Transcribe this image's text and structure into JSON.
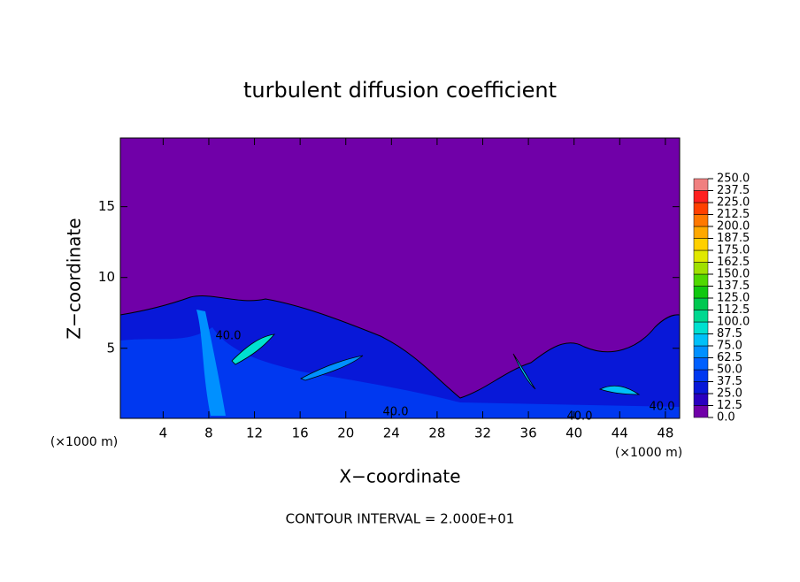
{
  "chart_data": {
    "type": "contour",
    "title": "turbulent diffusion coefficient",
    "x_label": "X−coordinate",
    "y_label": "Z−coordinate",
    "x_unit_left": "(×1000 m)",
    "x_unit_right": "(×1000 m)",
    "footer": "CONTOUR INTERVAL = 2.000E+01",
    "xlim": [
      0.25,
      49.25
    ],
    "ylim": [
      0.05,
      19.85
    ],
    "xticks": [
      4,
      8,
      12,
      16,
      20,
      24,
      28,
      32,
      36,
      40,
      44,
      48
    ],
    "yticks": [
      5,
      10,
      15
    ],
    "contour_labels": [
      "40.0",
      "40.0",
      "40.0",
      "40.0"
    ],
    "colorbar": {
      "levels": [
        {
          "value": 0,
          "label": "0.0"
        },
        {
          "value": 12.5,
          "label": "12.5"
        },
        {
          "value": 25,
          "label": "25.0"
        },
        {
          "value": 37.5,
          "label": "37.5"
        },
        {
          "value": 50,
          "label": "50.0"
        },
        {
          "value": 62.5,
          "label": "62.5"
        },
        {
          "value": 75,
          "label": "75.0"
        },
        {
          "value": 87.5,
          "label": "87.5"
        },
        {
          "value": 100,
          "label": "100.0"
        },
        {
          "value": 112.5,
          "label": "112.5"
        },
        {
          "value": 125,
          "label": "125.0"
        },
        {
          "value": 137.5,
          "label": "137.5"
        },
        {
          "value": 150,
          "label": "150.0"
        },
        {
          "value": 162.5,
          "label": "162.5"
        },
        {
          "value": 175,
          "label": "175.0"
        },
        {
          "value": 187.5,
          "label": "187.5"
        },
        {
          "value": 200,
          "label": "200.0"
        },
        {
          "value": 212.5,
          "label": "212.5"
        },
        {
          "value": 225,
          "label": "225.0"
        },
        {
          "value": 237.5,
          "label": "237.5"
        },
        {
          "value": 250,
          "label": "250.0"
        }
      ],
      "colors": [
        "#7000a8",
        "#2a00c0",
        "#0818d8",
        "#0038f0",
        "#0060ff",
        "#0090ff",
        "#00c0f8",
        "#00e0d0",
        "#00d890",
        "#00c850",
        "#10c810",
        "#50d800",
        "#a0e000",
        "#e0e800",
        "#ffd000",
        "#ffa800",
        "#ff7800",
        "#ff4000",
        "#ff2020",
        "#f08080"
      ]
    }
  }
}
